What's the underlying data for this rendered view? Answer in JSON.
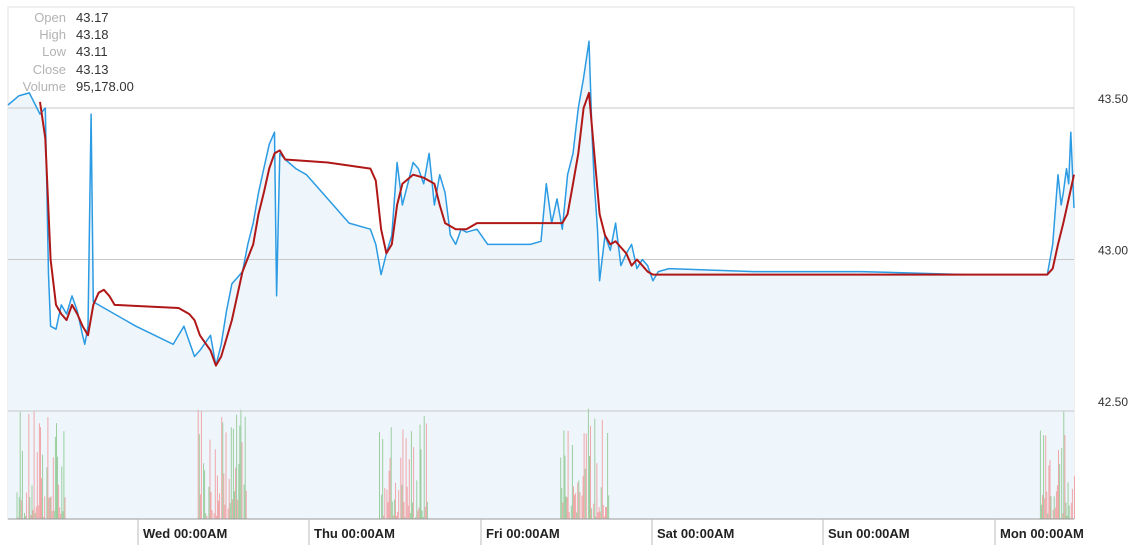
{
  "ohlc": {
    "open_label": "Open",
    "open": "43.17",
    "high_label": "High",
    "high": "43.18",
    "low_label": "Low",
    "low": "43.11",
    "close_label": "Close",
    "close": "43.13",
    "volume_label": "Volume",
    "volume": "95,178.00"
  },
  "colors": {
    "price_line": "#2b9be3",
    "price_fill": "#eef6fc",
    "moving_average": "#b01818",
    "volume_up": "#7fbf7f",
    "volume_down": "#f08c8c",
    "gridline": "#c8c8c8",
    "axis": "#999999"
  },
  "chart_data": {
    "type": "line",
    "y_axis": {
      "position": "right",
      "range": [
        42.5,
        43.5
      ],
      "ticks": [
        "43.50",
        "43.00",
        "42.50"
      ]
    },
    "x_axis": {
      "ticks": [
        "Wed 00:00AM",
        "Thu 00:00AM",
        "Fri 00:00AM",
        "Sat 00:00AM",
        "Sun 00:00AM",
        "Mon 00:00AM"
      ]
    },
    "grid": true,
    "series": [
      {
        "kind": "price",
        "points": [
          [
            0.0,
            43.51
          ],
          [
            0.01,
            43.54
          ],
          [
            0.02,
            43.55
          ],
          [
            0.03,
            43.48
          ],
          [
            0.035,
            43.5
          ],
          [
            0.038,
            42.95
          ],
          [
            0.04,
            42.78
          ],
          [
            0.045,
            42.77
          ],
          [
            0.05,
            42.85
          ],
          [
            0.055,
            42.82
          ],
          [
            0.06,
            42.88
          ],
          [
            0.065,
            42.83
          ],
          [
            0.07,
            42.75
          ],
          [
            0.072,
            42.72
          ],
          [
            0.075,
            42.78
          ],
          [
            0.078,
            43.48
          ],
          [
            0.08,
            42.86
          ],
          [
            0.085,
            42.85
          ],
          [
            0.12,
            42.78
          ],
          [
            0.155,
            42.72
          ],
          [
            0.165,
            42.78
          ],
          [
            0.175,
            42.68
          ],
          [
            0.18,
            42.7
          ],
          [
            0.19,
            42.75
          ],
          [
            0.195,
            42.65
          ],
          [
            0.2,
            42.72
          ],
          [
            0.205,
            42.83
          ],
          [
            0.21,
            42.92
          ],
          [
            0.215,
            42.94
          ],
          [
            0.22,
            42.96
          ],
          [
            0.225,
            43.05
          ],
          [
            0.23,
            43.12
          ],
          [
            0.235,
            43.22
          ],
          [
            0.24,
            43.3
          ],
          [
            0.245,
            43.38
          ],
          [
            0.25,
            43.42
          ],
          [
            0.252,
            42.88
          ],
          [
            0.255,
            43.35
          ],
          [
            0.26,
            43.33
          ],
          [
            0.27,
            43.3
          ],
          [
            0.28,
            43.28
          ],
          [
            0.3,
            43.2
          ],
          [
            0.32,
            43.12
          ],
          [
            0.34,
            43.1
          ],
          [
            0.345,
            43.05
          ],
          [
            0.35,
            42.95
          ],
          [
            0.355,
            43.02
          ],
          [
            0.36,
            43.08
          ],
          [
            0.365,
            43.32
          ],
          [
            0.37,
            43.18
          ],
          [
            0.375,
            43.25
          ],
          [
            0.38,
            43.32
          ],
          [
            0.385,
            43.3
          ],
          [
            0.39,
            43.25
          ],
          [
            0.395,
            43.35
          ],
          [
            0.4,
            43.18
          ],
          [
            0.405,
            43.28
          ],
          [
            0.41,
            43.22
          ],
          [
            0.415,
            43.08
          ],
          [
            0.42,
            43.05
          ],
          [
            0.425,
            43.1
          ],
          [
            0.43,
            43.09
          ],
          [
            0.44,
            43.1
          ],
          [
            0.45,
            43.05
          ],
          [
            0.47,
            43.05
          ],
          [
            0.49,
            43.05
          ],
          [
            0.5,
            43.06
          ],
          [
            0.505,
            43.25
          ],
          [
            0.51,
            43.12
          ],
          [
            0.515,
            43.2
          ],
          [
            0.52,
            43.1
          ],
          [
            0.525,
            43.28
          ],
          [
            0.53,
            43.35
          ],
          [
            0.535,
            43.5
          ],
          [
            0.54,
            43.6
          ],
          [
            0.545,
            43.72
          ],
          [
            0.548,
            43.4
          ],
          [
            0.55,
            43.25
          ],
          [
            0.553,
            43.1
          ],
          [
            0.555,
            42.93
          ],
          [
            0.56,
            43.08
          ],
          [
            0.565,
            43.03
          ],
          [
            0.57,
            43.12
          ],
          [
            0.575,
            42.98
          ],
          [
            0.58,
            43.02
          ],
          [
            0.585,
            43.05
          ],
          [
            0.59,
            42.97
          ],
          [
            0.595,
            43.0
          ],
          [
            0.6,
            42.98
          ],
          [
            0.605,
            42.93
          ],
          [
            0.61,
            42.96
          ],
          [
            0.62,
            42.97
          ],
          [
            0.7,
            42.96
          ],
          [
            0.8,
            42.96
          ],
          [
            0.9,
            42.95
          ],
          [
            0.975,
            42.95
          ],
          [
            0.98,
            43.05
          ],
          [
            0.985,
            43.28
          ],
          [
            0.988,
            43.18
          ],
          [
            0.99,
            43.22
          ],
          [
            0.993,
            43.3
          ],
          [
            0.995,
            43.25
          ],
          [
            0.997,
            43.42
          ],
          [
            1.0,
            43.17
          ]
        ]
      },
      {
        "kind": "moving_average",
        "points": [
          [
            0.03,
            43.52
          ],
          [
            0.035,
            43.4
          ],
          [
            0.04,
            43.0
          ],
          [
            0.045,
            42.85
          ],
          [
            0.05,
            42.82
          ],
          [
            0.055,
            42.8
          ],
          [
            0.06,
            42.85
          ],
          [
            0.065,
            42.82
          ],
          [
            0.07,
            42.78
          ],
          [
            0.075,
            42.75
          ],
          [
            0.08,
            42.85
          ],
          [
            0.085,
            42.89
          ],
          [
            0.09,
            42.9
          ],
          [
            0.095,
            42.88
          ],
          [
            0.1,
            42.85
          ],
          [
            0.16,
            42.84
          ],
          [
            0.17,
            42.82
          ],
          [
            0.175,
            42.8
          ],
          [
            0.18,
            42.75
          ],
          [
            0.19,
            42.7
          ],
          [
            0.195,
            42.65
          ],
          [
            0.2,
            42.68
          ],
          [
            0.21,
            42.8
          ],
          [
            0.215,
            42.88
          ],
          [
            0.22,
            42.96
          ],
          [
            0.23,
            43.05
          ],
          [
            0.235,
            43.15
          ],
          [
            0.24,
            43.22
          ],
          [
            0.245,
            43.3
          ],
          [
            0.25,
            43.35
          ],
          [
            0.255,
            43.36
          ],
          [
            0.26,
            43.33
          ],
          [
            0.3,
            43.32
          ],
          [
            0.34,
            43.3
          ],
          [
            0.345,
            43.26
          ],
          [
            0.35,
            43.1
          ],
          [
            0.355,
            43.02
          ],
          [
            0.36,
            43.05
          ],
          [
            0.365,
            43.18
          ],
          [
            0.37,
            43.25
          ],
          [
            0.38,
            43.28
          ],
          [
            0.39,
            43.27
          ],
          [
            0.4,
            43.25
          ],
          [
            0.405,
            43.18
          ],
          [
            0.41,
            43.12
          ],
          [
            0.42,
            43.1
          ],
          [
            0.43,
            43.1
          ],
          [
            0.44,
            43.12
          ],
          [
            0.5,
            43.12
          ],
          [
            0.51,
            43.12
          ],
          [
            0.52,
            43.12
          ],
          [
            0.525,
            43.15
          ],
          [
            0.53,
            43.25
          ],
          [
            0.535,
            43.35
          ],
          [
            0.54,
            43.5
          ],
          [
            0.545,
            43.55
          ],
          [
            0.55,
            43.35
          ],
          [
            0.555,
            43.15
          ],
          [
            0.56,
            43.08
          ],
          [
            0.565,
            43.05
          ],
          [
            0.57,
            43.06
          ],
          [
            0.575,
            43.04
          ],
          [
            0.58,
            43.02
          ],
          [
            0.585,
            42.98
          ],
          [
            0.59,
            43.0
          ],
          [
            0.595,
            42.98
          ],
          [
            0.6,
            42.96
          ],
          [
            0.605,
            42.95
          ],
          [
            0.7,
            42.95
          ],
          [
            0.8,
            42.95
          ],
          [
            0.9,
            42.95
          ],
          [
            0.975,
            42.95
          ],
          [
            0.98,
            42.97
          ],
          [
            0.985,
            43.05
          ],
          [
            0.99,
            43.12
          ],
          [
            0.995,
            43.2
          ],
          [
            1.0,
            43.28
          ]
        ]
      },
      {
        "kind": "volume",
        "clusters": [
          0.03,
          0.2,
          0.37,
          0.54,
          0.99
        ],
        "max_fraction": 0.9
      }
    ]
  }
}
